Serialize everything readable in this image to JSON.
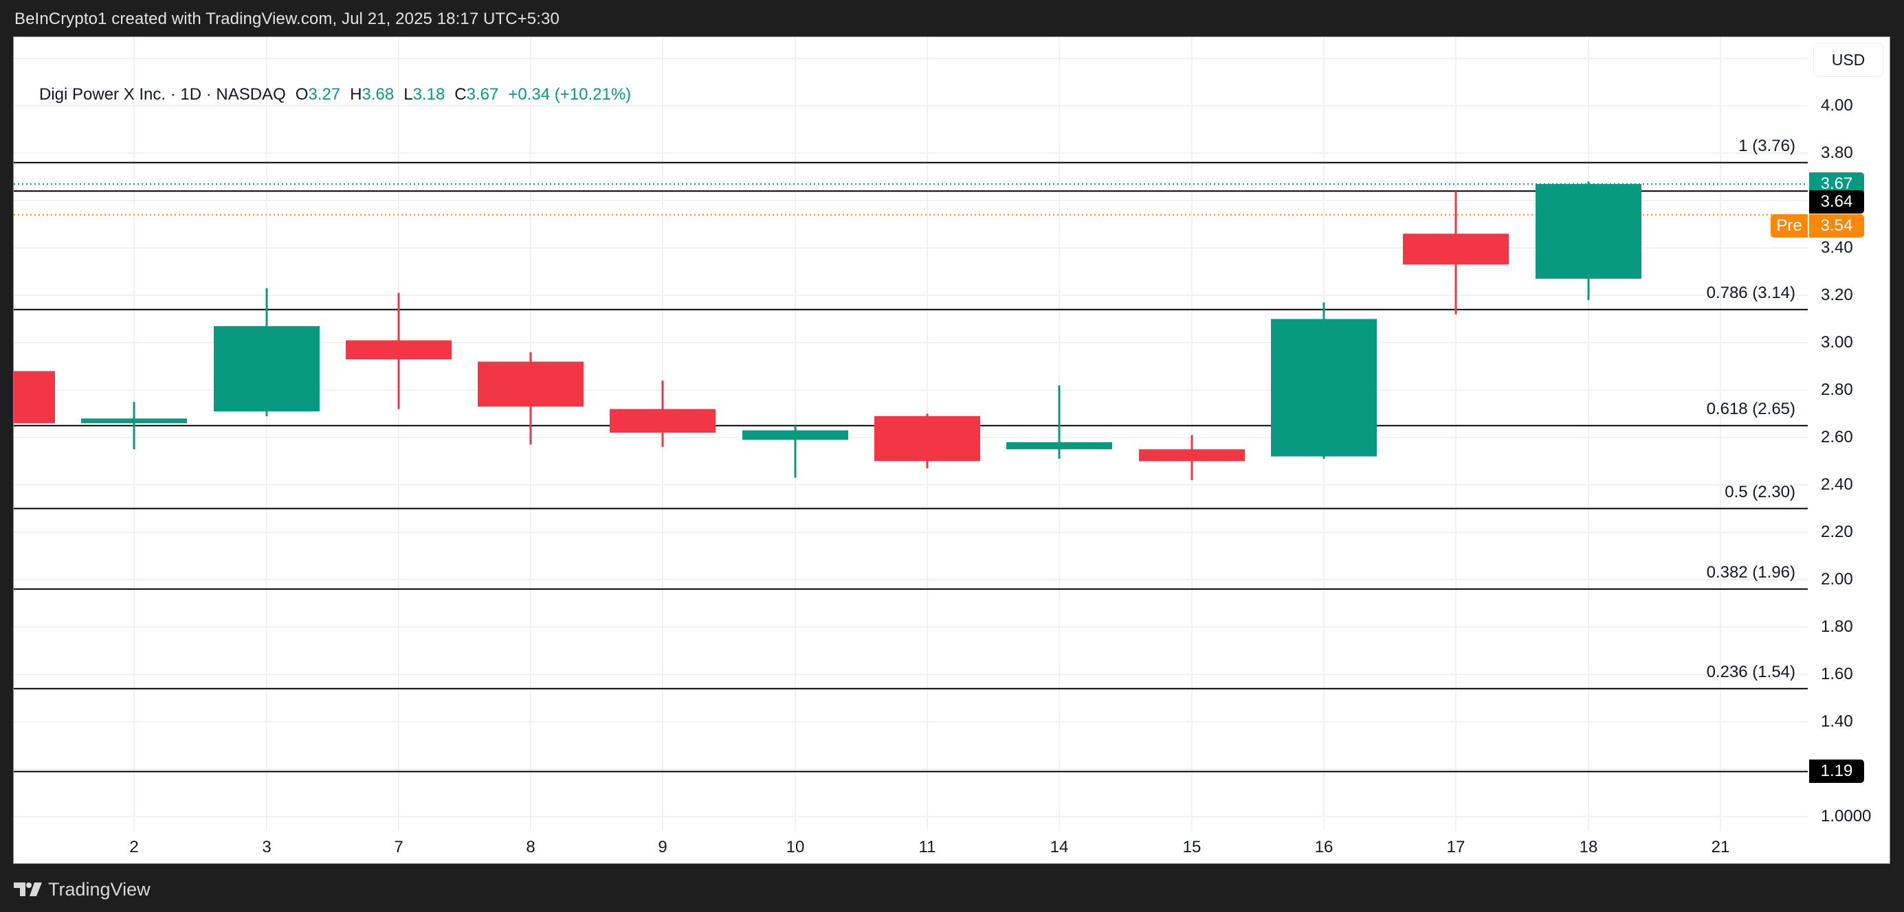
{
  "header": {
    "attribution": "BeInCrypto1 created with TradingView.com, Jul 21, 2025 18:17 UTC+5:30"
  },
  "legend": {
    "symbol": "Digi Power X Inc. · 1D · NASDAQ",
    "open_label": "O",
    "open": "3.27",
    "high_label": "H",
    "high": "3.68",
    "low_label": "L",
    "low": "3.18",
    "close_label": "C",
    "close": "3.67",
    "change": "+0.34 (+10.21%)"
  },
  "currency_button": "USD",
  "footer": {
    "brand": "TradingView",
    "logo_icon": "tradingview-logo-icon"
  },
  "colors": {
    "up": "#089981",
    "down": "#f23645",
    "fib_line": "#000000",
    "grid": "#f0f1f3",
    "last_price": "#089981",
    "premarket": "#f7890a",
    "header_bg": "#1e1e1e"
  },
  "price_badges": {
    "last": "3.67",
    "fib_top_line": "3.64",
    "pre_label": "Pre",
    "pre": "3.54",
    "low_line": "1.19"
  },
  "chart_data": {
    "type": "candlestick",
    "title": "Digi Power X Inc. · 1D · NASDAQ",
    "xlabel": "",
    "ylabel": "USD",
    "ylim": [
      0.92,
      4.26
    ],
    "grid": true,
    "y_ticks": [
      "4.00",
      "3.80",
      "3.40",
      "3.20",
      "3.00",
      "2.80",
      "2.60",
      "2.40",
      "2.20",
      "2.00",
      "1.80",
      "1.60",
      "1.40",
      "1.0000"
    ],
    "y_tick_values": [
      4.0,
      3.8,
      3.4,
      3.2,
      3.0,
      2.8,
      2.6,
      2.4,
      2.2,
      2.0,
      1.8,
      1.6,
      1.4,
      1.0
    ],
    "x_ticks": [
      "2",
      "3",
      "7",
      "8",
      "9",
      "10",
      "11",
      "14",
      "15",
      "16",
      "17",
      "18",
      "21"
    ],
    "candles": [
      {
        "date": "1",
        "open": 2.88,
        "high": 2.92,
        "low": 2.63,
        "close": 2.66,
        "partial": true
      },
      {
        "date": "2",
        "open": 2.66,
        "high": 2.75,
        "low": 2.55,
        "close": 2.68
      },
      {
        "date": "3",
        "open": 2.71,
        "high": 3.23,
        "low": 2.69,
        "close": 3.07
      },
      {
        "date": "7",
        "open": 3.01,
        "high": 3.21,
        "low": 2.72,
        "close": 2.93
      },
      {
        "date": "8",
        "open": 2.92,
        "high": 2.96,
        "low": 2.57,
        "close": 2.73
      },
      {
        "date": "9",
        "open": 2.72,
        "high": 2.84,
        "low": 2.56,
        "close": 2.62
      },
      {
        "date": "10",
        "open": 2.59,
        "high": 2.65,
        "low": 2.43,
        "close": 2.63
      },
      {
        "date": "11",
        "open": 2.69,
        "high": 2.7,
        "low": 2.47,
        "close": 2.5
      },
      {
        "date": "14",
        "open": 2.55,
        "high": 2.82,
        "low": 2.51,
        "close": 2.58
      },
      {
        "date": "15",
        "open": 2.55,
        "high": 2.61,
        "low": 2.42,
        "close": 2.5
      },
      {
        "date": "16",
        "open": 2.52,
        "high": 3.17,
        "low": 2.51,
        "close": 3.1
      },
      {
        "date": "17",
        "open": 3.46,
        "high": 3.64,
        "low": 3.12,
        "close": 3.33
      },
      {
        "date": "18",
        "open": 3.27,
        "high": 3.68,
        "low": 3.18,
        "close": 3.67
      }
    ],
    "fib_levels": [
      {
        "label": "1 (3.76)",
        "ratio": 1,
        "price": 3.76
      },
      {
        "label": "0.786 (3.14)",
        "ratio": 0.786,
        "price": 3.14
      },
      {
        "label": "0.618 (2.65)",
        "ratio": 0.618,
        "price": 2.65
      },
      {
        "label": "0.5 (2.30)",
        "ratio": 0.5,
        "price": 2.3
      },
      {
        "label": "0.382 (1.96)",
        "ratio": 0.382,
        "price": 1.96
      },
      {
        "label": "0.236 (1.54)",
        "ratio": 0.236,
        "price": 1.54
      }
    ],
    "horizontal_lines": [
      {
        "price": 3.64,
        "style": "solid",
        "badge": "3.64"
      },
      {
        "price": 1.19,
        "style": "solid",
        "badge": "1.19"
      },
      {
        "price": 3.67,
        "style": "dotted",
        "color": "#089981",
        "badge": "3.67"
      },
      {
        "price": 3.54,
        "style": "dotted",
        "color": "#f7890a",
        "badge": "3.54",
        "tag": "Pre"
      }
    ],
    "annotations": []
  }
}
